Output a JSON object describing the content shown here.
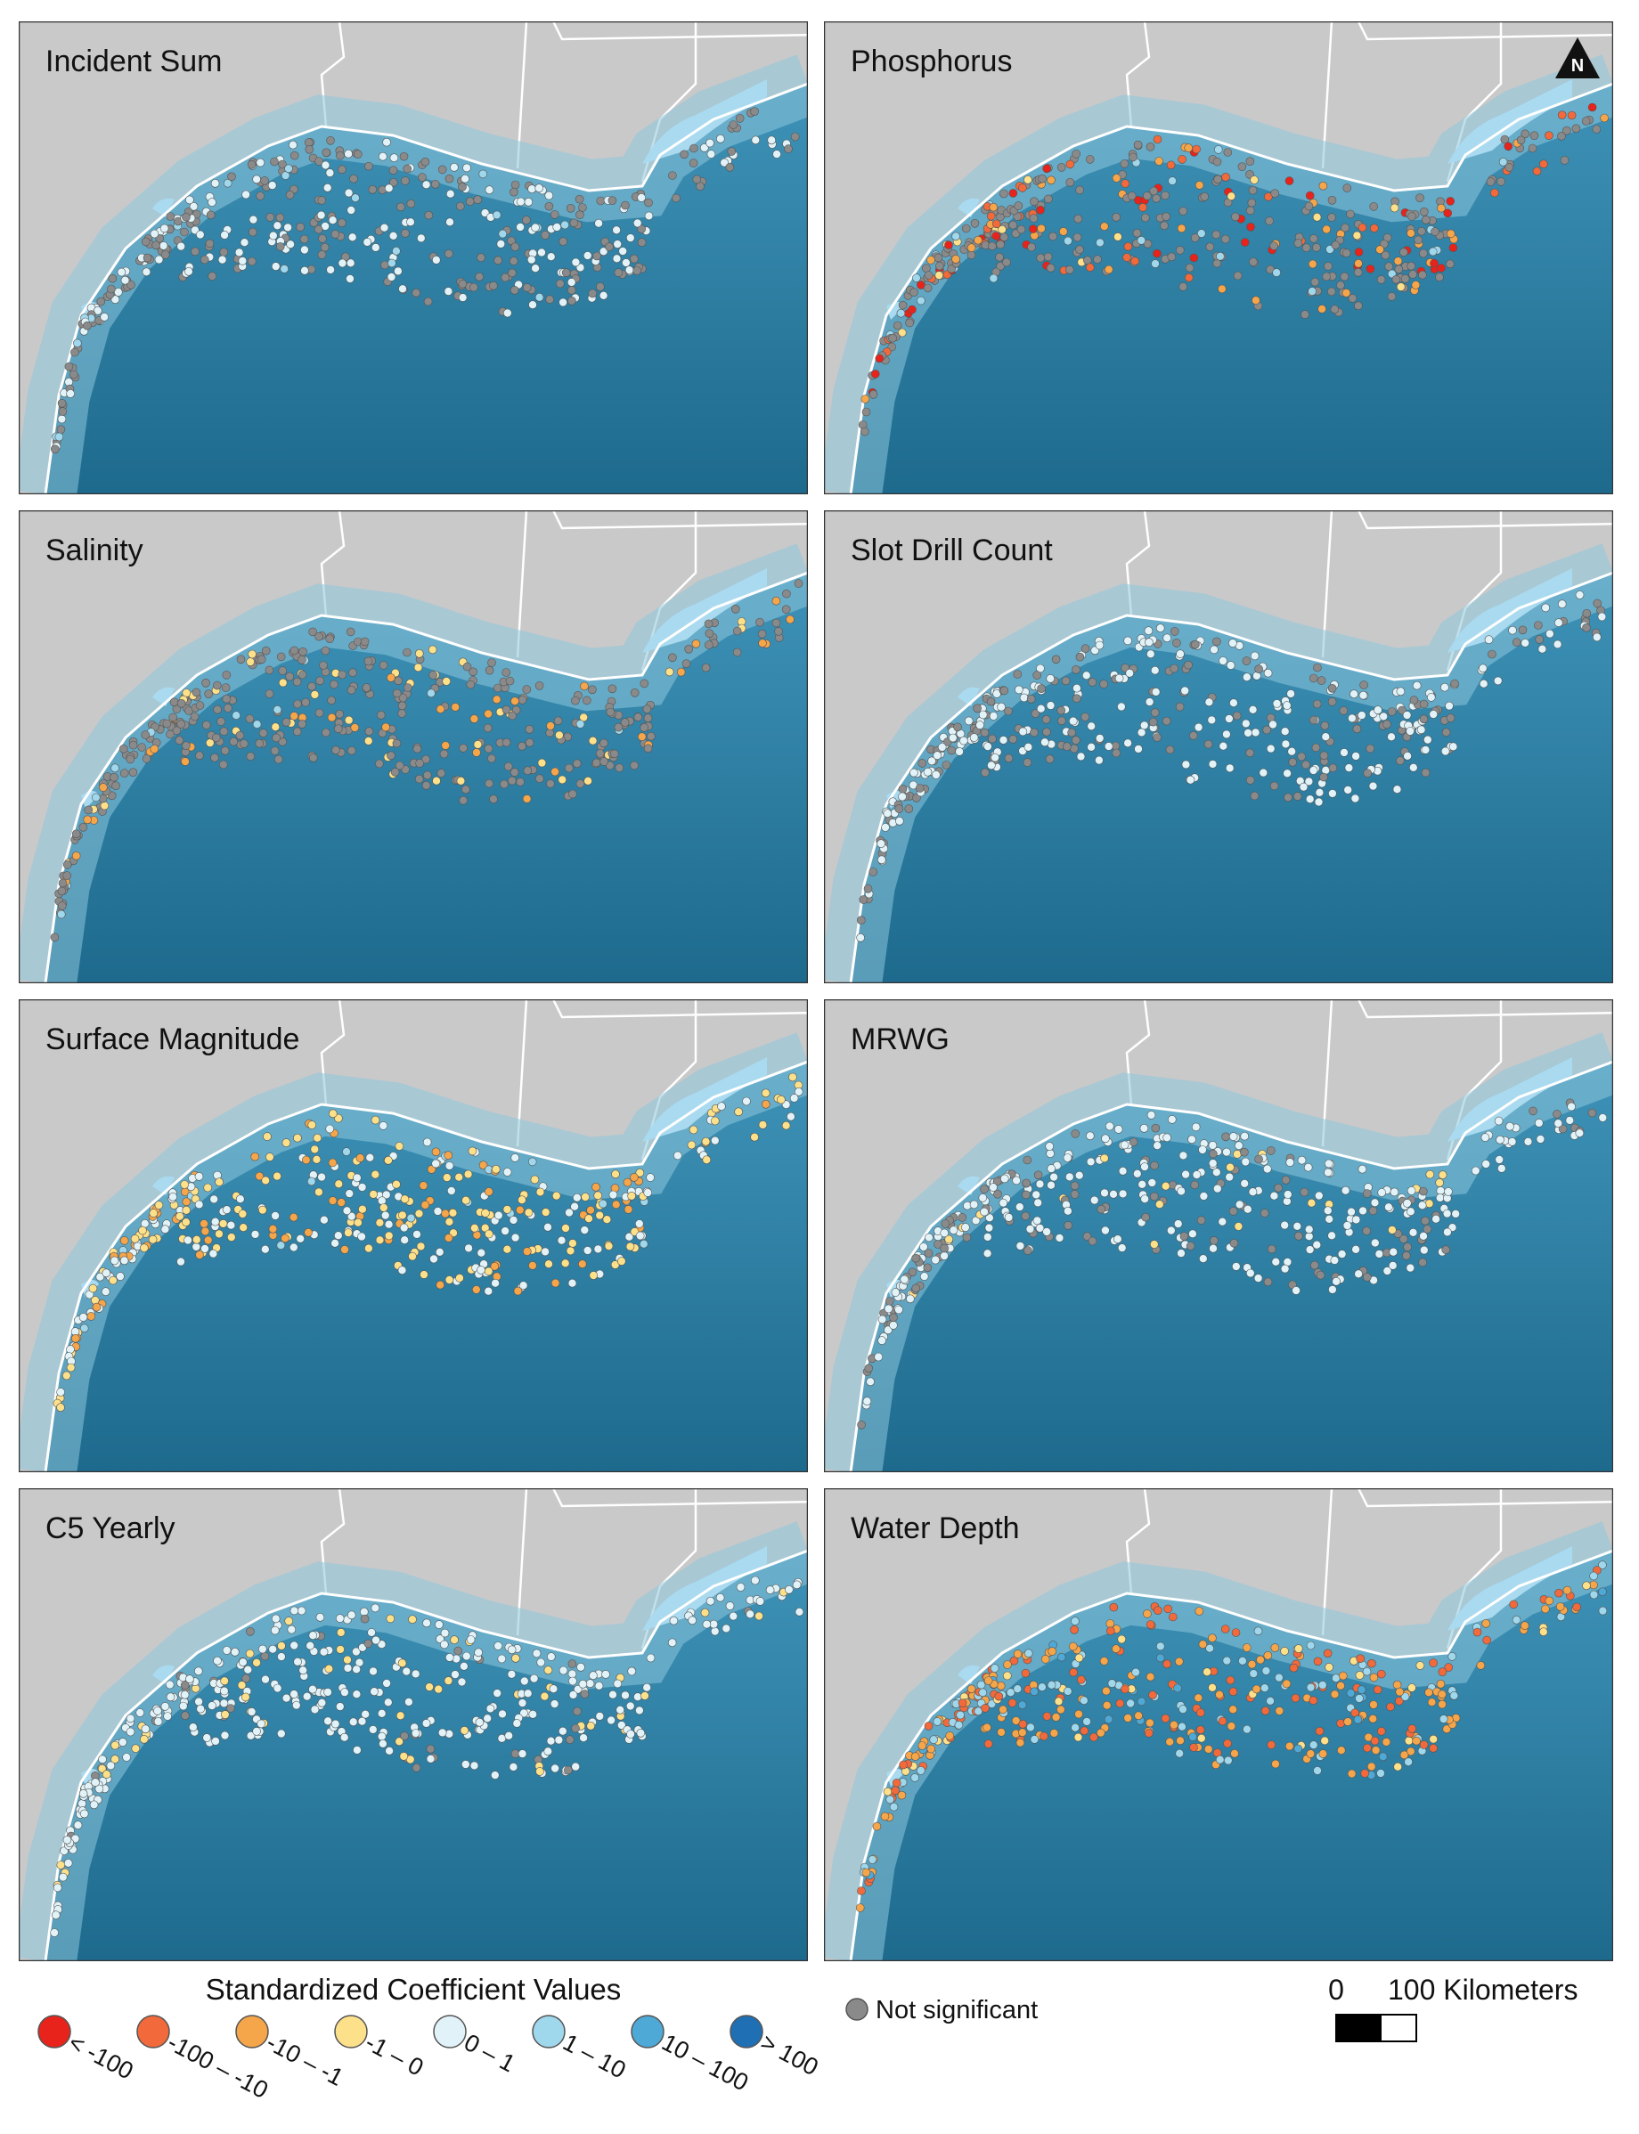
{
  "panels": [
    {
      "title": "Incident Sum"
    },
    {
      "title": "Phosphorus"
    },
    {
      "title": "Salinity"
    },
    {
      "title": "Slot Drill Count"
    },
    {
      "title": "Surface Magnitude"
    },
    {
      "title": "MRWG"
    },
    {
      "title": "C5 Yearly"
    },
    {
      "title": "Water Depth"
    }
  ],
  "north_arrow": "N",
  "legend": {
    "title": "Standardized Coefficient Values",
    "classes": [
      {
        "label": "< -100",
        "color": "#e8231b"
      },
      {
        "label": "-100 – -10",
        "color": "#f26a3b"
      },
      {
        "label": "-10 – -1",
        "color": "#f5a54a"
      },
      {
        "label": "-1 – 0",
        "color": "#fde08a"
      },
      {
        "label": "0 – 1",
        "color": "#e1f3f8"
      },
      {
        "label": "1 – 10",
        "color": "#9fd7ec"
      },
      {
        "label": "10 – 100",
        "color": "#4ea9d6"
      },
      {
        "label": "> 100",
        "color": "#1f6fb5"
      }
    ],
    "not_significant": {
      "label": "Not significant",
      "color": "#8a8a8a"
    }
  },
  "scale_bar": {
    "zero": "0",
    "label": "100 Kilometers"
  }
}
